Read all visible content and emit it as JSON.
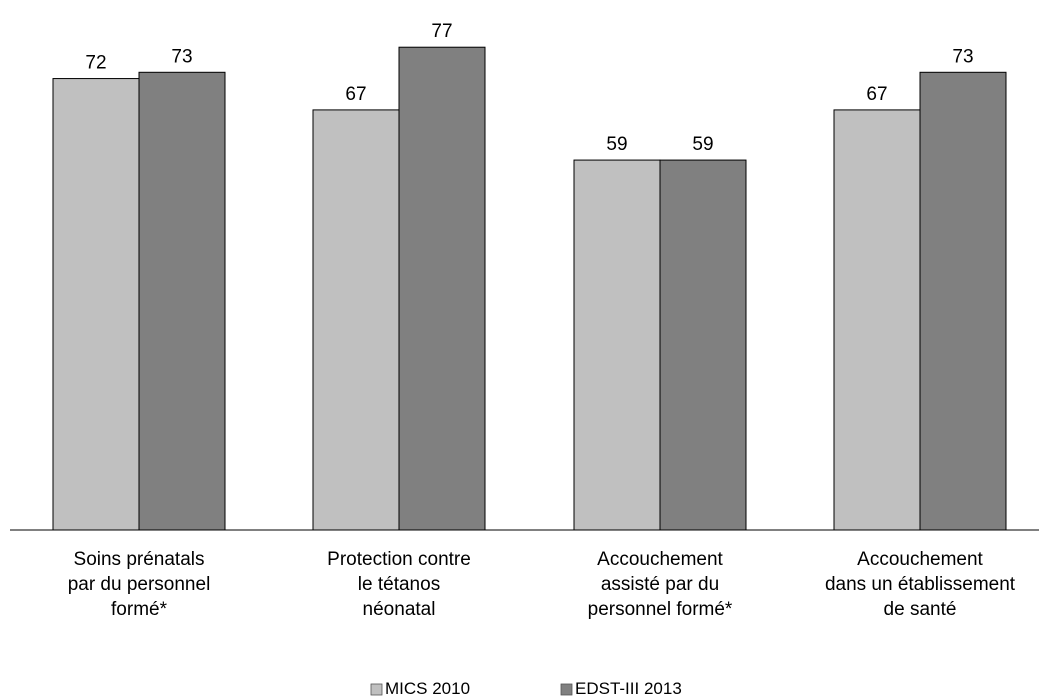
{
  "chart_data": {
    "type": "bar",
    "categories": [
      [
        "Soins prénatals",
        "par du personnel",
        "formé*"
      ],
      [
        "Protection contre",
        "le tétanos",
        "néonatal"
      ],
      [
        "Accouchement",
        "assisté par du",
        "personnel formé*"
      ],
      [
        "Accouchement",
        "dans un établissement",
        "de santé"
      ]
    ],
    "series": [
      {
        "name": "MICS 2010",
        "values": [
          72,
          67,
          59,
          67
        ],
        "color": "#c0c0c0"
      },
      {
        "name": "EDST-III 2013",
        "values": [
          73,
          77,
          59,
          73
        ],
        "color": "#808080"
      }
    ],
    "ylim": [
      0,
      85
    ],
    "grid": false,
    "legend_position": "bottom"
  }
}
